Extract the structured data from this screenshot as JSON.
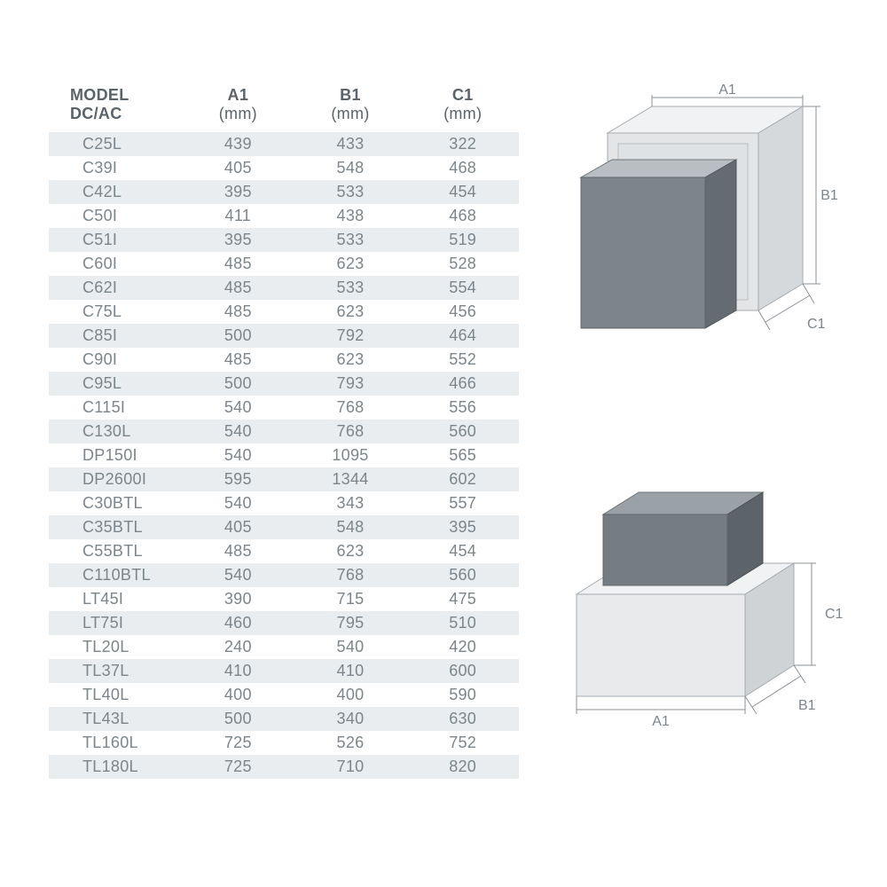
{
  "table": {
    "header": {
      "model_line1": "MODEL",
      "model_line2": "DC/AC",
      "a1": "A1",
      "a1_unit": "(mm)",
      "b1": "B1",
      "b1_unit": "(mm)",
      "c1": "C1",
      "c1_unit": "(mm)"
    },
    "rows": [
      {
        "model": "C25L",
        "a1": "439",
        "b1": "433",
        "c1": "322"
      },
      {
        "model": "C39I",
        "a1": "405",
        "b1": "548",
        "c1": "468"
      },
      {
        "model": "C42L",
        "a1": "395",
        "b1": "533",
        "c1": "454"
      },
      {
        "model": "C50I",
        "a1": "411",
        "b1": "438",
        "c1": "468"
      },
      {
        "model": "C51I",
        "a1": "395",
        "b1": "533",
        "c1": "519"
      },
      {
        "model": "C60I",
        "a1": "485",
        "b1": "623",
        "c1": "528"
      },
      {
        "model": "C62I",
        "a1": "485",
        "b1": "533",
        "c1": "554"
      },
      {
        "model": "C75L",
        "a1": "485",
        "b1": "623",
        "c1": "456"
      },
      {
        "model": "C85I",
        "a1": "500",
        "b1": "792",
        "c1": "464"
      },
      {
        "model": "C90I",
        "a1": "485",
        "b1": "623",
        "c1": "552"
      },
      {
        "model": "C95L",
        "a1": "500",
        "b1": "793",
        "c1": "466"
      },
      {
        "model": "C115I",
        "a1": "540",
        "b1": "768",
        "c1": "556"
      },
      {
        "model": "C130L",
        "a1": "540",
        "b1": "768",
        "c1": "560"
      },
      {
        "model": "DP150I",
        "a1": "540",
        "b1": "1095",
        "c1": "565"
      },
      {
        "model": "DP2600I",
        "a1": "595",
        "b1": "1344",
        "c1": "602"
      },
      {
        "model": "C30BTL",
        "a1": "540",
        "b1": "343",
        "c1": "557"
      },
      {
        "model": "C35BTL",
        "a1": "405",
        "b1": "548",
        "c1": "395"
      },
      {
        "model": "C55BTL",
        "a1": "485",
        "b1": "623",
        "c1": "454"
      },
      {
        "model": "C110BTL",
        "a1": "540",
        "b1": "768",
        "c1": "560"
      },
      {
        "model": "LT45I",
        "a1": "390",
        "b1": "715",
        "c1": "475"
      },
      {
        "model": "LT75I",
        "a1": "460",
        "b1": "795",
        "c1": "510"
      },
      {
        "model": "TL20L",
        "a1": "240",
        "b1": "540",
        "c1": "420"
      },
      {
        "model": "TL37L",
        "a1": "410",
        "b1": "410",
        "c1": "600"
      },
      {
        "model": "TL40L",
        "a1": "400",
        "b1": "400",
        "c1": "590"
      },
      {
        "model": "TL43L",
        "a1": "500",
        "b1": "340",
        "c1": "630"
      },
      {
        "model": "TL160L",
        "a1": "725",
        "b1": "526",
        "c1": "752"
      },
      {
        "model": "TL180L",
        "a1": "725",
        "b1": "710",
        "c1": "820"
      }
    ],
    "row_colors": {
      "odd": "#eaedef",
      "even": "#ffffff"
    },
    "text_color": "#7c858b",
    "header_color": "#5a636a",
    "font_size": 18
  },
  "diagram1": {
    "label_a1": "A1",
    "label_b1": "B1",
    "label_c1": "C1",
    "colors": {
      "outer_top": "#f1f2f3",
      "outer_side": "#d6d9db",
      "outer_front": "#e3e5e7",
      "inner_top": "#b9bec2",
      "inner_front": "#7d858b",
      "inner_side": "#646b71",
      "dim_line": "#8a9096",
      "label_text": "#7c858b"
    }
  },
  "diagram2": {
    "label_a1": "A1",
    "label_b1": "B1",
    "label_c1": "C1",
    "colors": {
      "base_top": "#f1f2f3",
      "base_front": "#e8eaec",
      "base_side": "#cfd3d6",
      "upper_top": "#9ba2a7",
      "upper_front": "#757d83",
      "upper_side": "#5d6469",
      "dim_line": "#8a9096",
      "label_text": "#7c858b"
    }
  }
}
